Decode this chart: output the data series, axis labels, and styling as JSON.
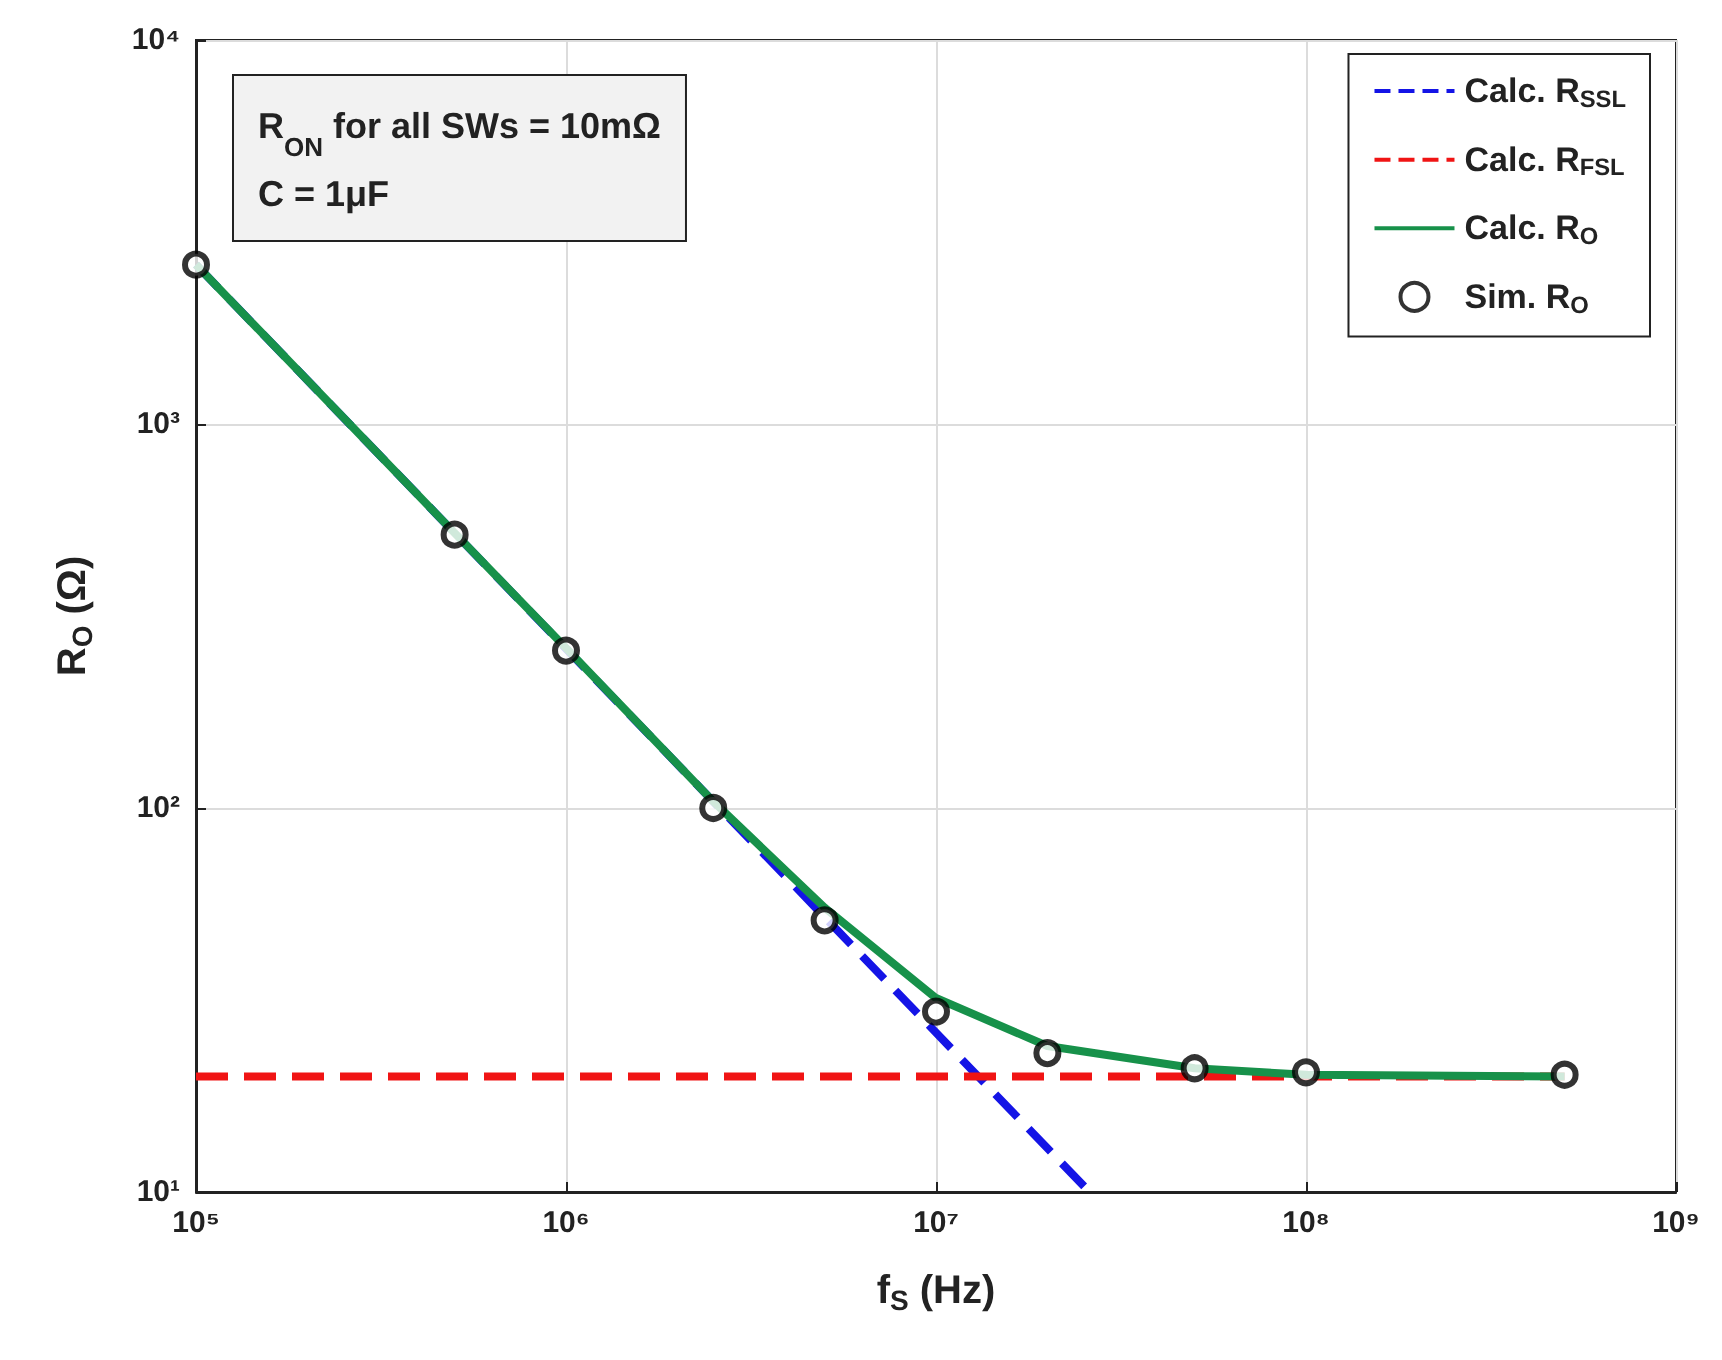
{
  "chart_data": {
    "type": "line",
    "xlabel": "f$_{S}$ (Hz)",
    "ylabel": "R$_{O}$ (Ω)",
    "annotations": [
      "R$_{ON}$ for all SWs = 10mΩ",
      "C = 1μF"
    ],
    "log": "xy",
    "grid": true,
    "legend": "top right",
    "xlim": [
      100000,
      1000000000
    ],
    "xticks": [
      {
        "value": 100000,
        "label": "10⁵"
      },
      {
        "value": 1000000,
        "label": "10⁶"
      },
      {
        "value": 10000000,
        "label": "10⁷"
      },
      {
        "value": 100000000,
        "label": "10⁸"
      },
      {
        "value": 1000000000,
        "label": "10⁹"
      }
    ],
    "ylim": [
      10,
      10000
    ],
    "yticks": [
      {
        "value": 10,
        "label": "10¹"
      },
      {
        "value": 100,
        "label": "10²"
      },
      {
        "value": 1000,
        "label": "10³"
      },
      {
        "value": 10000,
        "label": "10⁴"
      }
    ],
    "series": [
      {
        "name": "Calc. R$_{SSL}$",
        "color": "#1414e6",
        "line_style": "dashed",
        "marker": "none",
        "x": [
          100000,
          26000000
        ],
        "values": [
          2600,
          10
        ]
      },
      {
        "name": "Calc. R$_{FSL}$",
        "color": "#f01414",
        "line_style": "dashed",
        "marker": "none",
        "x": [
          100000,
          500000000
        ],
        "values": [
          20,
          20
        ]
      },
      {
        "name": "Calc. R$_{O}$",
        "color": "#17914a",
        "line_style": "solid",
        "marker": "none",
        "x": [
          100000,
          500000,
          1000000,
          2500000,
          5000000,
          10000000,
          20000000,
          50000000,
          100000000,
          500000000
        ],
        "values": [
          2600,
          520,
          261,
          104,
          55,
          32,
          24,
          21,
          20.2,
          20
        ]
      },
      {
        "name": "Sim. R$_{O}$",
        "type": "scatter",
        "color": "#000000",
        "marker": "circle",
        "x": [
          100000,
          500000,
          1000000,
          2500000,
          5000000,
          10000000,
          20000000,
          50000000,
          100000000,
          500000000
        ],
        "values": [
          2600,
          515,
          257,
          100,
          51,
          29.5,
          23,
          21,
          20.5,
          20.2
        ]
      }
    ]
  }
}
